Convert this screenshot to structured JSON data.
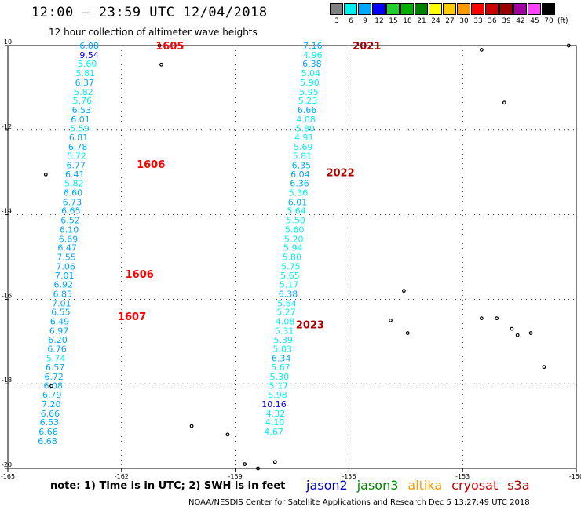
{
  "header": {
    "title": "12:00 – 23:59 UTC 12/04/2018",
    "subtitle": "12 hour collection of altimeter wave heights"
  },
  "legend": {
    "unit": "(ft)",
    "levels": [
      "3",
      "6",
      "9",
      "12",
      "15",
      "18",
      "21",
      "24",
      "27",
      "30",
      "33",
      "36",
      "39",
      "42",
      "45",
      "70"
    ],
    "colors": [
      "#808080",
      "#00f0f0",
      "#00a8ff",
      "#0000ff",
      "#20d030",
      "#00b000",
      "#008000",
      "#ffff00",
      "#ffcc00",
      "#ff9900",
      "#ff0000",
      "#cc0000",
      "#990000",
      "#a000a0",
      "#ff40ff",
      "#000000"
    ]
  },
  "chart_data": {
    "type": "scatter",
    "title": "12:00 – 23:59 UTC 12/04/2018",
    "xlim": [
      -165,
      -150
    ],
    "ylim": [
      -20,
      -10
    ],
    "x_ticks": [
      "-165",
      "-162",
      "-159",
      "-156",
      "-153",
      "-150"
    ],
    "y_ticks": [
      "-10",
      "-12",
      "-14",
      "-16",
      "-18",
      "-20"
    ],
    "grid": true,
    "passes": [
      {
        "label": "1605",
        "color": "#ff0000",
        "lon": -161.1,
        "lat": -10.0
      },
      {
        "label": "1606",
        "color": "#ff0000",
        "lon": -161.6,
        "lat": -12.8
      },
      {
        "label": "1606",
        "color": "#ff0000",
        "lon": -161.9,
        "lat": -15.4
      },
      {
        "label": "1607",
        "color": "#ff0000",
        "lon": -162.1,
        "lat": -16.4
      },
      {
        "label": "2021",
        "color": "#aa0000",
        "lon": -155.9,
        "lat": -10.0
      },
      {
        "label": "2022",
        "color": "#aa0000",
        "lon": -156.6,
        "lat": -13.0
      },
      {
        "label": "2023",
        "color": "#aa0000",
        "lon": -157.4,
        "lat": -16.6
      }
    ],
    "series": [
      {
        "name": "cryosat",
        "points": [
          {
            "lon": -162.6,
            "lat": -10.0,
            "v": "6.08"
          },
          {
            "lon": -162.6,
            "lat": -10.22,
            "v": "9.54"
          },
          {
            "lon": -162.65,
            "lat": -10.43,
            "v": "5.60"
          },
          {
            "lon": -162.7,
            "lat": -10.65,
            "v": "5.81"
          },
          {
            "lon": -162.72,
            "lat": -10.87,
            "v": "6.37"
          },
          {
            "lon": -162.75,
            "lat": -11.09,
            "v": "5.82"
          },
          {
            "lon": -162.78,
            "lat": -11.3,
            "v": "5.76"
          },
          {
            "lon": -162.8,
            "lat": -11.52,
            "v": "6.53"
          },
          {
            "lon": -162.83,
            "lat": -11.74,
            "v": "6.01"
          },
          {
            "lon": -162.85,
            "lat": -11.96,
            "v": "5.59"
          },
          {
            "lon": -162.88,
            "lat": -12.17,
            "v": "6.81"
          },
          {
            "lon": -162.9,
            "lat": -12.39,
            "v": "6.78"
          },
          {
            "lon": -162.93,
            "lat": -12.61,
            "v": "5.72"
          },
          {
            "lon": -162.95,
            "lat": -12.83,
            "v": "6.77"
          },
          {
            "lon": -162.98,
            "lat": -13.04,
            "v": "6.41"
          },
          {
            "lon": -163.0,
            "lat": -13.26,
            "v": "5.82"
          },
          {
            "lon": -163.03,
            "lat": -13.48,
            "v": "6.60"
          },
          {
            "lon": -163.05,
            "lat": -13.7,
            "v": "6.73"
          },
          {
            "lon": -163.08,
            "lat": -13.91,
            "v": "6.65"
          },
          {
            "lon": -163.1,
            "lat": -14.13,
            "v": "6.52"
          },
          {
            "lon": -163.13,
            "lat": -14.35,
            "v": "6.10"
          },
          {
            "lon": -163.15,
            "lat": -14.57,
            "v": "6.69"
          },
          {
            "lon": -163.18,
            "lat": -14.78,
            "v": "6.47"
          },
          {
            "lon": -163.2,
            "lat": -15.0,
            "v": "7.55"
          },
          {
            "lon": -163.22,
            "lat": -15.22,
            "v": "7.06"
          },
          {
            "lon": -163.25,
            "lat": -15.44,
            "v": "7.01"
          },
          {
            "lon": -163.28,
            "lat": -15.65,
            "v": "6.92"
          },
          {
            "lon": -163.3,
            "lat": -15.87,
            "v": "6.85"
          },
          {
            "lon": -163.33,
            "lat": -16.09,
            "v": "7.01"
          },
          {
            "lon": -163.35,
            "lat": -16.3,
            "v": "6.55"
          },
          {
            "lon": -163.38,
            "lat": -16.52,
            "v": "6.49"
          },
          {
            "lon": -163.4,
            "lat": -16.74,
            "v": "6.97"
          },
          {
            "lon": -163.43,
            "lat": -16.96,
            "v": "6.20"
          },
          {
            "lon": -163.45,
            "lat": -17.17,
            "v": "6.76"
          },
          {
            "lon": -163.48,
            "lat": -17.39,
            "v": "5.74"
          },
          {
            "lon": -163.5,
            "lat": -17.61,
            "v": "6.57"
          },
          {
            "lon": -163.53,
            "lat": -17.83,
            "v": "6.72"
          },
          {
            "lon": -163.55,
            "lat": -18.04,
            "v": "6.08"
          },
          {
            "lon": -163.58,
            "lat": -18.26,
            "v": "6.79"
          },
          {
            "lon": -163.6,
            "lat": -18.48,
            "v": "7.20"
          },
          {
            "lon": -163.63,
            "lat": -18.7,
            "v": "6.66"
          },
          {
            "lon": -163.65,
            "lat": -18.91,
            "v": "6.53"
          },
          {
            "lon": -163.68,
            "lat": -19.13,
            "v": "6.66"
          },
          {
            "lon": -163.7,
            "lat": -19.35,
            "v": "6.68"
          }
        ]
      },
      {
        "name": "cryosat",
        "points": [
          {
            "lon": -156.7,
            "lat": -10.0,
            "v": "7.16"
          },
          {
            "lon": -156.7,
            "lat": -10.22,
            "v": "4.96"
          },
          {
            "lon": -156.72,
            "lat": -10.43,
            "v": "6.38"
          },
          {
            "lon": -156.75,
            "lat": -10.65,
            "v": "5.04"
          },
          {
            "lon": -156.78,
            "lat": -10.87,
            "v": "5.90"
          },
          {
            "lon": -156.8,
            "lat": -11.09,
            "v": "5.95"
          },
          {
            "lon": -156.83,
            "lat": -11.3,
            "v": "5.23"
          },
          {
            "lon": -156.85,
            "lat": -11.52,
            "v": "6.66"
          },
          {
            "lon": -156.88,
            "lat": -11.74,
            "v": "4.08"
          },
          {
            "lon": -156.9,
            "lat": -11.96,
            "v": "5.80"
          },
          {
            "lon": -156.93,
            "lat": -12.17,
            "v": "4.91"
          },
          {
            "lon": -156.95,
            "lat": -12.39,
            "v": "5.69"
          },
          {
            "lon": -156.98,
            "lat": -12.61,
            "v": "5.81"
          },
          {
            "lon": -157.0,
            "lat": -12.83,
            "v": "6.35"
          },
          {
            "lon": -157.03,
            "lat": -13.04,
            "v": "6.04"
          },
          {
            "lon": -157.05,
            "lat": -13.26,
            "v": "6.36"
          },
          {
            "lon": -157.08,
            "lat": -13.48,
            "v": "5.36"
          },
          {
            "lon": -157.1,
            "lat": -13.7,
            "v": "6.01"
          },
          {
            "lon": -157.13,
            "lat": -13.91,
            "v": "5.64"
          },
          {
            "lon": -157.15,
            "lat": -14.13,
            "v": "5.50"
          },
          {
            "lon": -157.18,
            "lat": -14.35,
            "v": "5.60"
          },
          {
            "lon": -157.2,
            "lat": -14.57,
            "v": "5.20"
          },
          {
            "lon": -157.22,
            "lat": -14.78,
            "v": "5.94"
          },
          {
            "lon": -157.25,
            "lat": -15.0,
            "v": "5.80"
          },
          {
            "lon": -157.28,
            "lat": -15.22,
            "v": "5.75"
          },
          {
            "lon": -157.3,
            "lat": -15.44,
            "v": "5.65"
          },
          {
            "lon": -157.33,
            "lat": -15.65,
            "v": "5.17"
          },
          {
            "lon": -157.35,
            "lat": -15.87,
            "v": "6.38"
          },
          {
            "lon": -157.38,
            "lat": -16.09,
            "v": "5.64"
          },
          {
            "lon": -157.4,
            "lat": -16.3,
            "v": "5.27"
          },
          {
            "lon": -157.43,
            "lat": -16.52,
            "v": "4.08"
          },
          {
            "lon": -157.45,
            "lat": -16.74,
            "v": "5.31"
          },
          {
            "lon": -157.48,
            "lat": -16.96,
            "v": "5.39"
          },
          {
            "lon": -157.5,
            "lat": -17.17,
            "v": "5.03"
          },
          {
            "lon": -157.53,
            "lat": -17.39,
            "v": "6.34"
          },
          {
            "lon": -157.55,
            "lat": -17.61,
            "v": "5.67"
          },
          {
            "lon": -157.58,
            "lat": -17.83,
            "v": "5.30"
          },
          {
            "lon": -157.6,
            "lat": -18.04,
            "v": "5.17"
          },
          {
            "lon": -157.63,
            "lat": -18.26,
            "v": "5.98"
          },
          {
            "lon": -157.65,
            "lat": -18.48,
            "v": "10.16"
          },
          {
            "lon": -157.68,
            "lat": -18.7,
            "v": "4.32"
          },
          {
            "lon": -157.7,
            "lat": -18.91,
            "v": "4.10"
          },
          {
            "lon": -157.73,
            "lat": -19.13,
            "v": "4.67"
          }
        ]
      }
    ],
    "islands": [
      {
        "lon": -161.0,
        "lat": -10.0
      },
      {
        "lon": -160.95,
        "lat": -10.45
      },
      {
        "lon": -152.5,
        "lat": -10.1
      },
      {
        "lon": -150.2,
        "lat": -10.0
      },
      {
        "lon": -151.9,
        "lat": -11.35
      },
      {
        "lon": -164.0,
        "lat": -13.05
      },
      {
        "lon": -154.55,
        "lat": -15.8
      },
      {
        "lon": -154.9,
        "lat": -16.5
      },
      {
        "lon": -154.45,
        "lat": -16.8
      },
      {
        "lon": -152.5,
        "lat": -16.45
      },
      {
        "lon": -152.1,
        "lat": -16.45
      },
      {
        "lon": -151.7,
        "lat": -16.7
      },
      {
        "lon": -151.55,
        "lat": -16.85
      },
      {
        "lon": -151.2,
        "lat": -16.8
      },
      {
        "lon": -150.85,
        "lat": -17.6
      },
      {
        "lon": -163.85,
        "lat": -18.05
      },
      {
        "lon": -160.15,
        "lat": -19.0
      },
      {
        "lon": -159.2,
        "lat": -19.2
      },
      {
        "lon": -158.75,
        "lat": -19.9
      },
      {
        "lon": -158.4,
        "lat": -20.0
      },
      {
        "lon": -157.95,
        "lat": -19.85
      }
    ]
  },
  "footer": {
    "note": "note:  1) Time is in UTC;  2) SWH is in feet",
    "satellites": [
      {
        "name": "jason2",
        "color": "#0000cc"
      },
      {
        "name": "jason3",
        "color": "#008800"
      },
      {
        "name": "altika",
        "color": "#ff9900"
      },
      {
        "name": "cryosat",
        "color": "#cc0000"
      },
      {
        "name": "s3a",
        "color": "#aa0000"
      }
    ],
    "credit": "NOAA/NESDIS Center for Satellite Applications and Research     Dec  5 13:27:49 UTC 2018"
  }
}
